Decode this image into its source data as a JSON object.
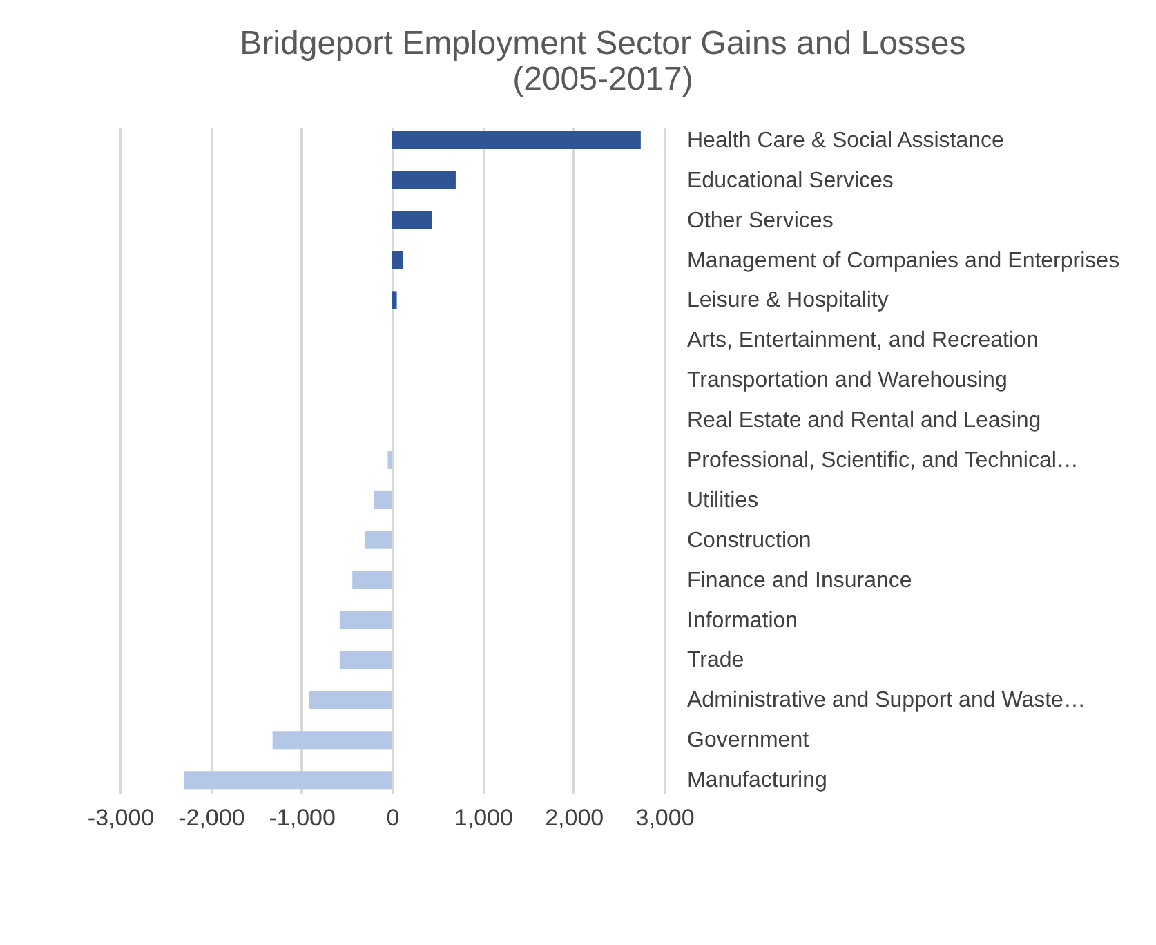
{
  "chart_data": {
    "type": "bar",
    "orientation": "horizontal",
    "title": "Bridgeport Employment Sector Gains and Losses (2005-2017)",
    "categories": [
      "Health Care & Social Assistance",
      "Educational Services",
      "Other Services",
      "Management of Companies and Enterprises",
      "Leisure & Hospitality",
      "Arts, Entertainment, and Recreation",
      "Transportation and Warehousing",
      "Real Estate and Rental and Leasing",
      "Professional, Scientific, and Technical…",
      "Utilities",
      "Construction",
      "Finance and Insurance",
      "Information",
      "Trade",
      "Administrative and Support and Waste…",
      "Government",
      "Manufacturing"
    ],
    "values": [
      2740,
      700,
      440,
      120,
      50,
      0,
      0,
      0,
      -50,
      -200,
      -300,
      -440,
      -580,
      -580,
      -920,
      -1320,
      -2300
    ],
    "colors": [
      "#2f5597",
      "#2f5597",
      "#2f5597",
      "#2f5597",
      "#2f5597",
      "#2f5597",
      "#2f5597",
      "#2f5597",
      "#b4c7e7",
      "#b4c7e7",
      "#b4c7e7",
      "#b4c7e7",
      "#b4c7e7",
      "#b4c7e7",
      "#b4c7e7",
      "#b4c7e7",
      "#b4c7e7"
    ],
    "xlim": [
      -3000,
      3000
    ],
    "xticks": [
      {
        "value": -3000,
        "label": "-3,000"
      },
      {
        "value": -2000,
        "label": "-2,000"
      },
      {
        "value": -1000,
        "label": "-1,000"
      },
      0,
      {
        "value": 1000,
        "label": "1,000"
      },
      {
        "value": 2000,
        "label": "2,000"
      },
      {
        "value": 3000,
        "label": "3,000"
      }
    ],
    "grid": "x"
  }
}
